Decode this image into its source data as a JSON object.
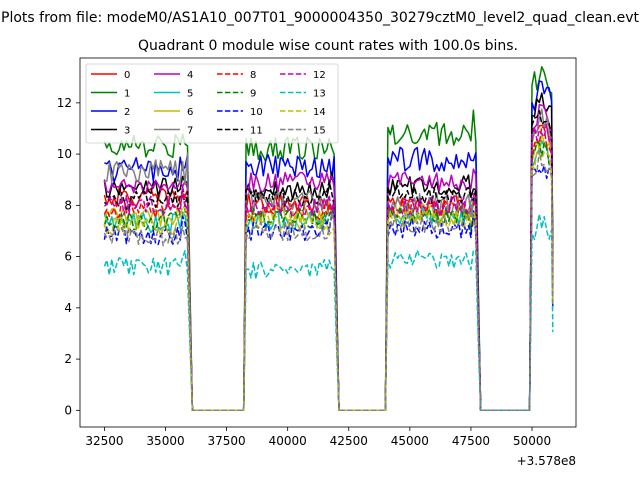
{
  "chart_data": {
    "type": "line",
    "suptitle": "Plots from file: modeM0/AS1A10_007T01_9000004350_30279cztM0_level2_quad_clean.evt",
    "title": "Quadrant 0 module wise count rates with 100.0s bins.",
    "xlabel": "",
    "ylabel": "",
    "x_offset_label": "+3.578e8",
    "xlim": [
      31500,
      51800
    ],
    "ylim": [
      -0.65,
      13.75
    ],
    "x_ticks": [
      32500,
      35000,
      37500,
      40000,
      42500,
      45000,
      47500,
      50000
    ],
    "x_tick_labels": [
      "32500",
      "35000",
      "37500",
      "40000",
      "42500",
      "45000",
      "47500",
      "50000"
    ],
    "y_ticks": [
      0,
      2,
      4,
      6,
      8,
      10,
      12
    ],
    "y_tick_labels": [
      "0",
      "2",
      "4",
      "6",
      "8",
      "10",
      "12"
    ],
    "grid": false,
    "legend_position": "top-left",
    "legend_columns": 4,
    "segments": [
      {
        "start": 32500,
        "end": 35900
      },
      {
        "start": 38300,
        "end": 41900
      },
      {
        "start": 44100,
        "end": 47700
      },
      {
        "start": 50000,
        "end": 50800
      }
    ],
    "gaps_at_zero": [
      [
        36100,
        38200
      ],
      [
        42000,
        44000
      ],
      [
        47800,
        49900
      ]
    ],
    "series": [
      {
        "name": "0",
        "color": "#ff0000",
        "dash": "solid",
        "levels": [
          8.3,
          8.1,
          8.0,
          10.3
        ]
      },
      {
        "name": "1",
        "color": "#008000",
        "dash": "solid",
        "levels": [
          10.3,
          10.2,
          10.8,
          12.5
        ]
      },
      {
        "name": "2",
        "color": "#0000ff",
        "dash": "solid",
        "levels": [
          9.4,
          9.5,
          9.8,
          11.9
        ]
      },
      {
        "name": "3",
        "color": "#000000",
        "dash": "solid",
        "levels": [
          8.7,
          8.6,
          8.8,
          11.5
        ]
      },
      {
        "name": "4",
        "color": "#bf00bf",
        "dash": "solid",
        "levels": [
          8.7,
          8.9,
          8.9,
          11.0
        ]
      },
      {
        "name": "5",
        "color": "#00bfbf",
        "dash": "solid",
        "levels": [
          7.3,
          7.4,
          7.6,
          9.6
        ]
      },
      {
        "name": "6",
        "color": "#bfbf00",
        "dash": "solid",
        "levels": [
          7.5,
          7.6,
          7.7,
          9.9
        ]
      },
      {
        "name": "7",
        "color": "#808080",
        "dash": "solid",
        "levels": [
          9.3,
          8.1,
          8.0,
          10.7
        ]
      },
      {
        "name": "8",
        "color": "#ff0000",
        "dash": "dashed",
        "levels": [
          7.9,
          7.8,
          7.9,
          10.1
        ]
      },
      {
        "name": "9",
        "color": "#008000",
        "dash": "dashed",
        "levels": [
          7.4,
          7.5,
          7.6,
          9.7
        ]
      },
      {
        "name": "10",
        "color": "#0000ff",
        "dash": "dashed",
        "levels": [
          6.8,
          7.0,
          7.1,
          9.0
        ]
      },
      {
        "name": "11",
        "color": "#000000",
        "dash": "dashed",
        "levels": [
          8.2,
          8.3,
          8.4,
          10.9
        ]
      },
      {
        "name": "12",
        "color": "#bf00bf",
        "dash": "dashed",
        "levels": [
          8.0,
          7.9,
          8.0,
          10.5
        ]
      },
      {
        "name": "13",
        "color": "#00bfbf",
        "dash": "dashed",
        "levels": [
          5.6,
          5.5,
          5.9,
          6.8
        ]
      },
      {
        "name": "14",
        "color": "#bfbf00",
        "dash": "dashed",
        "levels": [
          7.2,
          7.4,
          7.5,
          9.5
        ]
      },
      {
        "name": "15",
        "color": "#808080",
        "dash": "dashed",
        "levels": [
          6.8,
          7.0,
          7.3,
          9.2
        ]
      }
    ]
  }
}
